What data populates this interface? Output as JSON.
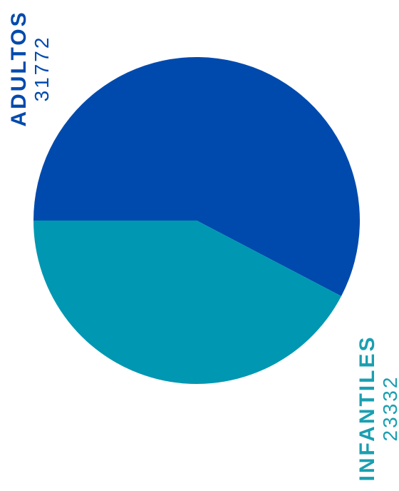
{
  "chart_data": {
    "type": "pie",
    "categories": [
      "ADULTOS",
      "INFANTILES"
    ],
    "values": [
      31772,
      23332
    ],
    "colors": [
      "#004aad",
      "#0097b2"
    ],
    "labels": [
      {
        "name": "ADULTOS",
        "value": "31772"
      },
      {
        "name": "INFANTILES",
        "value": "23332"
      }
    ]
  }
}
